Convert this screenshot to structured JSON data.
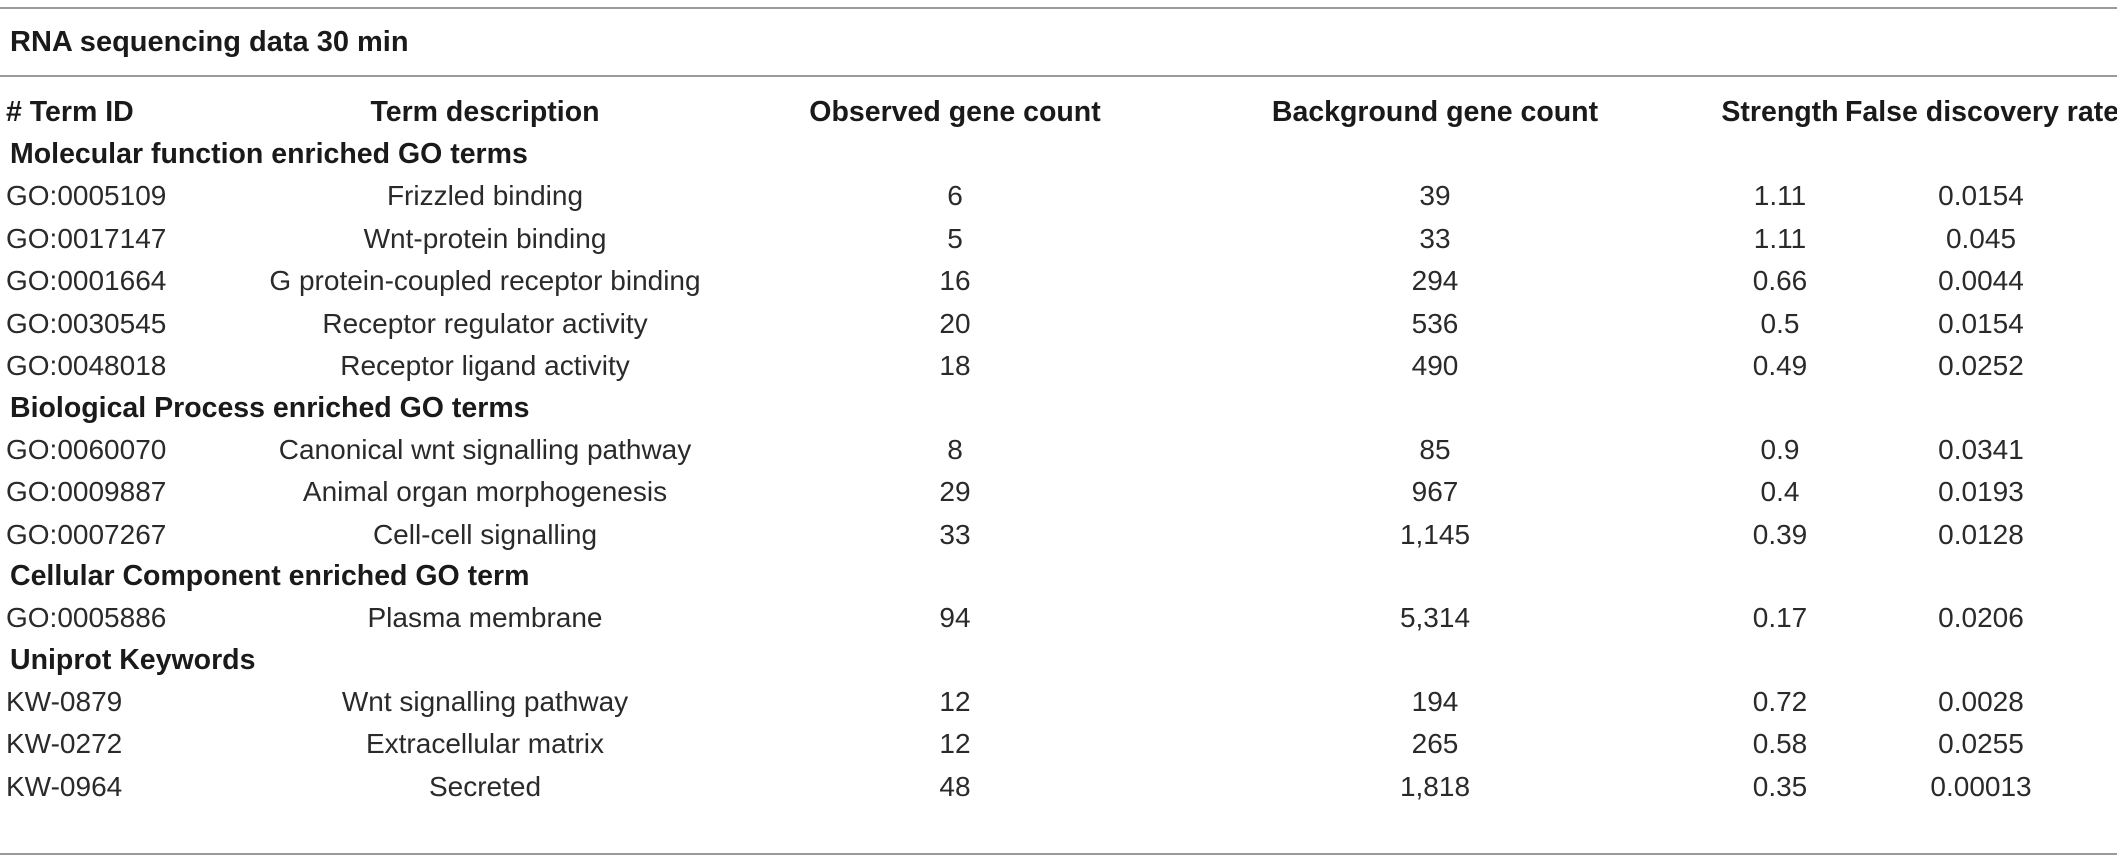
{
  "caption": "RNA sequencing data 30 min",
  "columns": [
    "# Term ID",
    "Term description",
    "Observed gene count",
    "Background gene count",
    "Strength",
    "False discovery rate"
  ],
  "sections": [
    {
      "title": "Molecular function enriched GO terms",
      "rows": [
        {
          "id": "GO:0005109",
          "description": "Frizzled binding",
          "observed": "6",
          "background": "39",
          "strength": "1.11",
          "fdr": "0.0154"
        },
        {
          "id": "GO:0017147",
          "description": "Wnt-protein binding",
          "observed": "5",
          "background": "33",
          "strength": "1.11",
          "fdr": "0.045"
        },
        {
          "id": "GO:0001664",
          "description": "G protein-coupled receptor binding",
          "observed": "16",
          "background": "294",
          "strength": "0.66",
          "fdr": "0.0044"
        },
        {
          "id": "GO:0030545",
          "description": "Receptor regulator activity",
          "observed": "20",
          "background": "536",
          "strength": "0.5",
          "fdr": "0.0154"
        },
        {
          "id": "GO:0048018",
          "description": "Receptor ligand activity",
          "observed": "18",
          "background": "490",
          "strength": "0.49",
          "fdr": "0.0252"
        }
      ]
    },
    {
      "title": "Biological Process enriched GO terms",
      "rows": [
        {
          "id": "GO:0060070",
          "description": "Canonical wnt signalling pathway",
          "observed": "8",
          "background": "85",
          "strength": "0.9",
          "fdr": "0.0341"
        },
        {
          "id": "GO:0009887",
          "description": "Animal organ morphogenesis",
          "observed": "29",
          "background": "967",
          "strength": "0.4",
          "fdr": "0.0193"
        },
        {
          "id": "GO:0007267",
          "description": "Cell-cell signalling",
          "observed": "33",
          "background": "1,145",
          "strength": "0.39",
          "fdr": "0.0128"
        }
      ]
    },
    {
      "title": "Cellular Component enriched GO term",
      "rows": [
        {
          "id": "GO:0005886",
          "description": "Plasma membrane",
          "observed": "94",
          "background": "5,314",
          "strength": "0.17",
          "fdr": "0.0206"
        }
      ]
    },
    {
      "title": "Uniprot Keywords",
      "rows": [
        {
          "id": "KW-0879",
          "description": "Wnt signalling pathway",
          "observed": "12",
          "background": "194",
          "strength": "0.72",
          "fdr": "0.0028"
        },
        {
          "id": "KW-0272",
          "description": "Extracellular matrix",
          "observed": "12",
          "background": "265",
          "strength": "0.58",
          "fdr": "0.0255"
        },
        {
          "id": "KW-0964",
          "description": "Secreted",
          "observed": "48",
          "background": "1,818",
          "strength": "0.35",
          "fdr": "0.00013"
        }
      ]
    }
  ]
}
